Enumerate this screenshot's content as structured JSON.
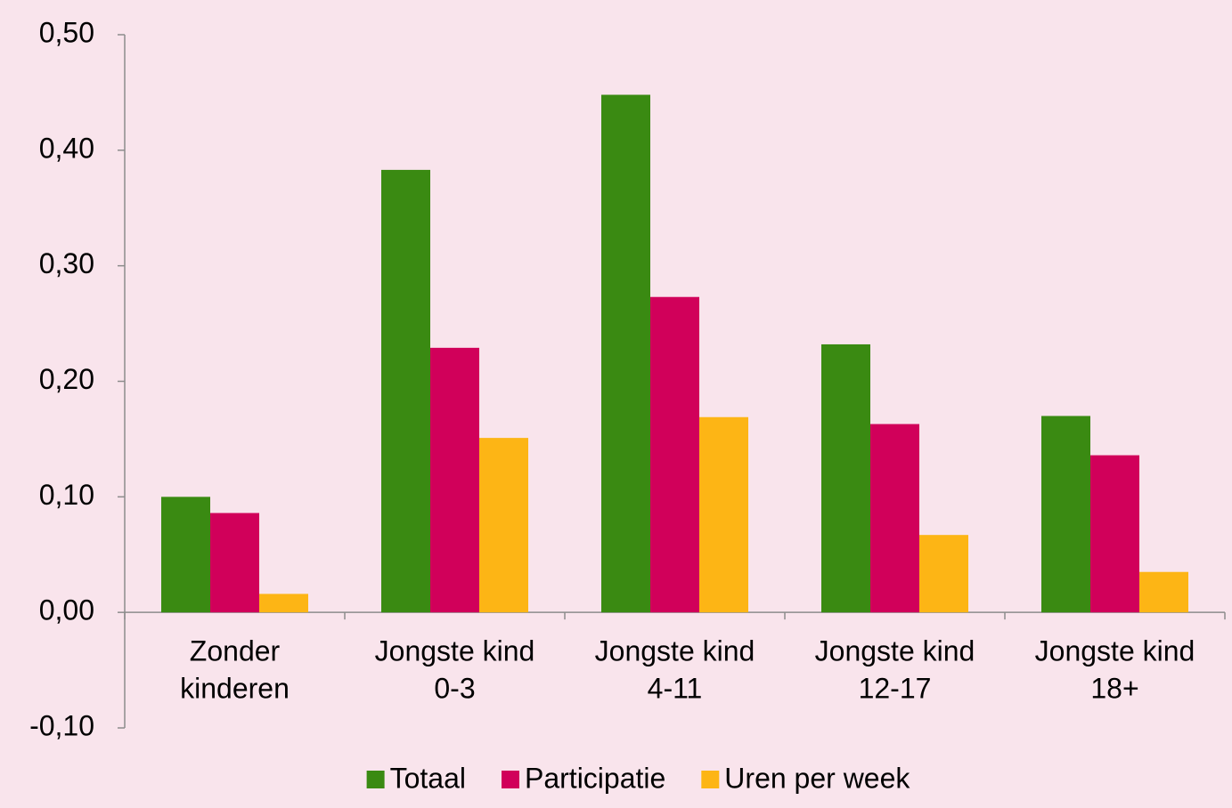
{
  "chart_data": {
    "type": "bar",
    "categories": [
      [
        "Zonder",
        "kinderen"
      ],
      [
        "Jongste kind",
        "0-3"
      ],
      [
        "Jongste kind",
        "4-11"
      ],
      [
        "Jongste kind",
        "12-17"
      ],
      [
        "Jongste kind",
        "18+"
      ]
    ],
    "series": [
      {
        "name": "Totaal",
        "color": "#3a8a12",
        "values": [
          0.1,
          0.383,
          0.448,
          0.232,
          0.17
        ]
      },
      {
        "name": "Participatie",
        "color": "#d1005a",
        "values": [
          0.086,
          0.229,
          0.273,
          0.163,
          0.136
        ]
      },
      {
        "name": "Uren per week",
        "color": "#fdb515",
        "values": [
          0.016,
          0.151,
          0.169,
          0.067,
          0.035
        ]
      }
    ],
    "ylim": [
      -0.1,
      0.5
    ],
    "yticks": [
      {
        "value": -0.1,
        "label": "-0,10"
      },
      {
        "value": 0.0,
        "label": "0,00"
      },
      {
        "value": 0.1,
        "label": "0,10"
      },
      {
        "value": 0.2,
        "label": "0,20"
      },
      {
        "value": 0.3,
        "label": "0,30"
      },
      {
        "value": 0.4,
        "label": "0,40"
      },
      {
        "value": 0.5,
        "label": "0,50"
      }
    ],
    "grid": false,
    "legend": "bottom"
  }
}
